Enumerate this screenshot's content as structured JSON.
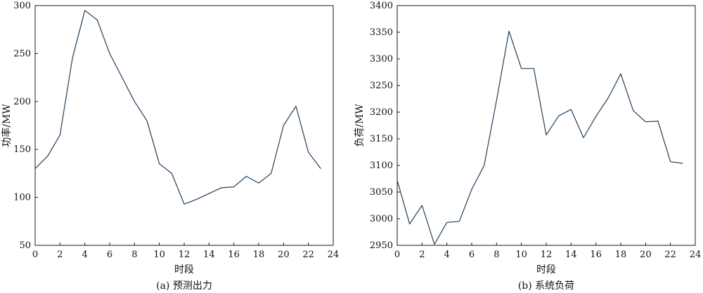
{
  "chart_data": [
    {
      "type": "line",
      "caption": "(a) 预测出力",
      "xlabel": "时段",
      "ylabel": "功率/MW",
      "xlim": [
        0,
        24
      ],
      "ylim": [
        50,
        300
      ],
      "xticks": [
        0,
        2,
        4,
        6,
        8,
        10,
        12,
        14,
        16,
        18,
        20,
        22,
        24
      ],
      "yticks": [
        50,
        100,
        150,
        200,
        250,
        300
      ],
      "grid": false,
      "series": [
        {
          "x": [
            0,
            1,
            2,
            3,
            4,
            5,
            6,
            7,
            8,
            9,
            10,
            11,
            12,
            13,
            14,
            15,
            16,
            17,
            18,
            19,
            20,
            21,
            22,
            23
          ],
          "values": [
            130,
            143,
            165,
            245,
            295,
            285,
            250,
            225,
            200,
            180,
            135,
            125,
            93,
            98,
            104,
            110,
            111,
            122,
            115,
            125,
            175,
            195,
            147,
            130
          ]
        }
      ]
    },
    {
      "type": "line",
      "caption": "(b) 系统负荷",
      "xlabel": "时段",
      "ylabel": "负荷/MW",
      "xlim": [
        0,
        24
      ],
      "ylim": [
        2950,
        3400
      ],
      "xticks": [
        0,
        2,
        4,
        6,
        8,
        10,
        12,
        14,
        16,
        18,
        20,
        22,
        24
      ],
      "yticks": [
        2950,
        3000,
        3050,
        3100,
        3150,
        3200,
        3250,
        3300,
        3350,
        3400
      ],
      "grid": false,
      "series": [
        {
          "x": [
            0,
            1,
            2,
            3,
            4,
            5,
            6,
            7,
            8,
            9,
            10,
            11,
            12,
            13,
            14,
            15,
            16,
            17,
            18,
            19,
            20,
            21,
            22,
            23
          ],
          "values": [
            3072,
            2990,
            3025,
            2952,
            2993,
            2995,
            3055,
            3100,
            3222,
            3352,
            3282,
            3282,
            3157,
            3193,
            3205,
            3152,
            3192,
            3227,
            3272,
            3203,
            3182,
            3183,
            3107,
            3104
          ]
        }
      ]
    }
  ]
}
